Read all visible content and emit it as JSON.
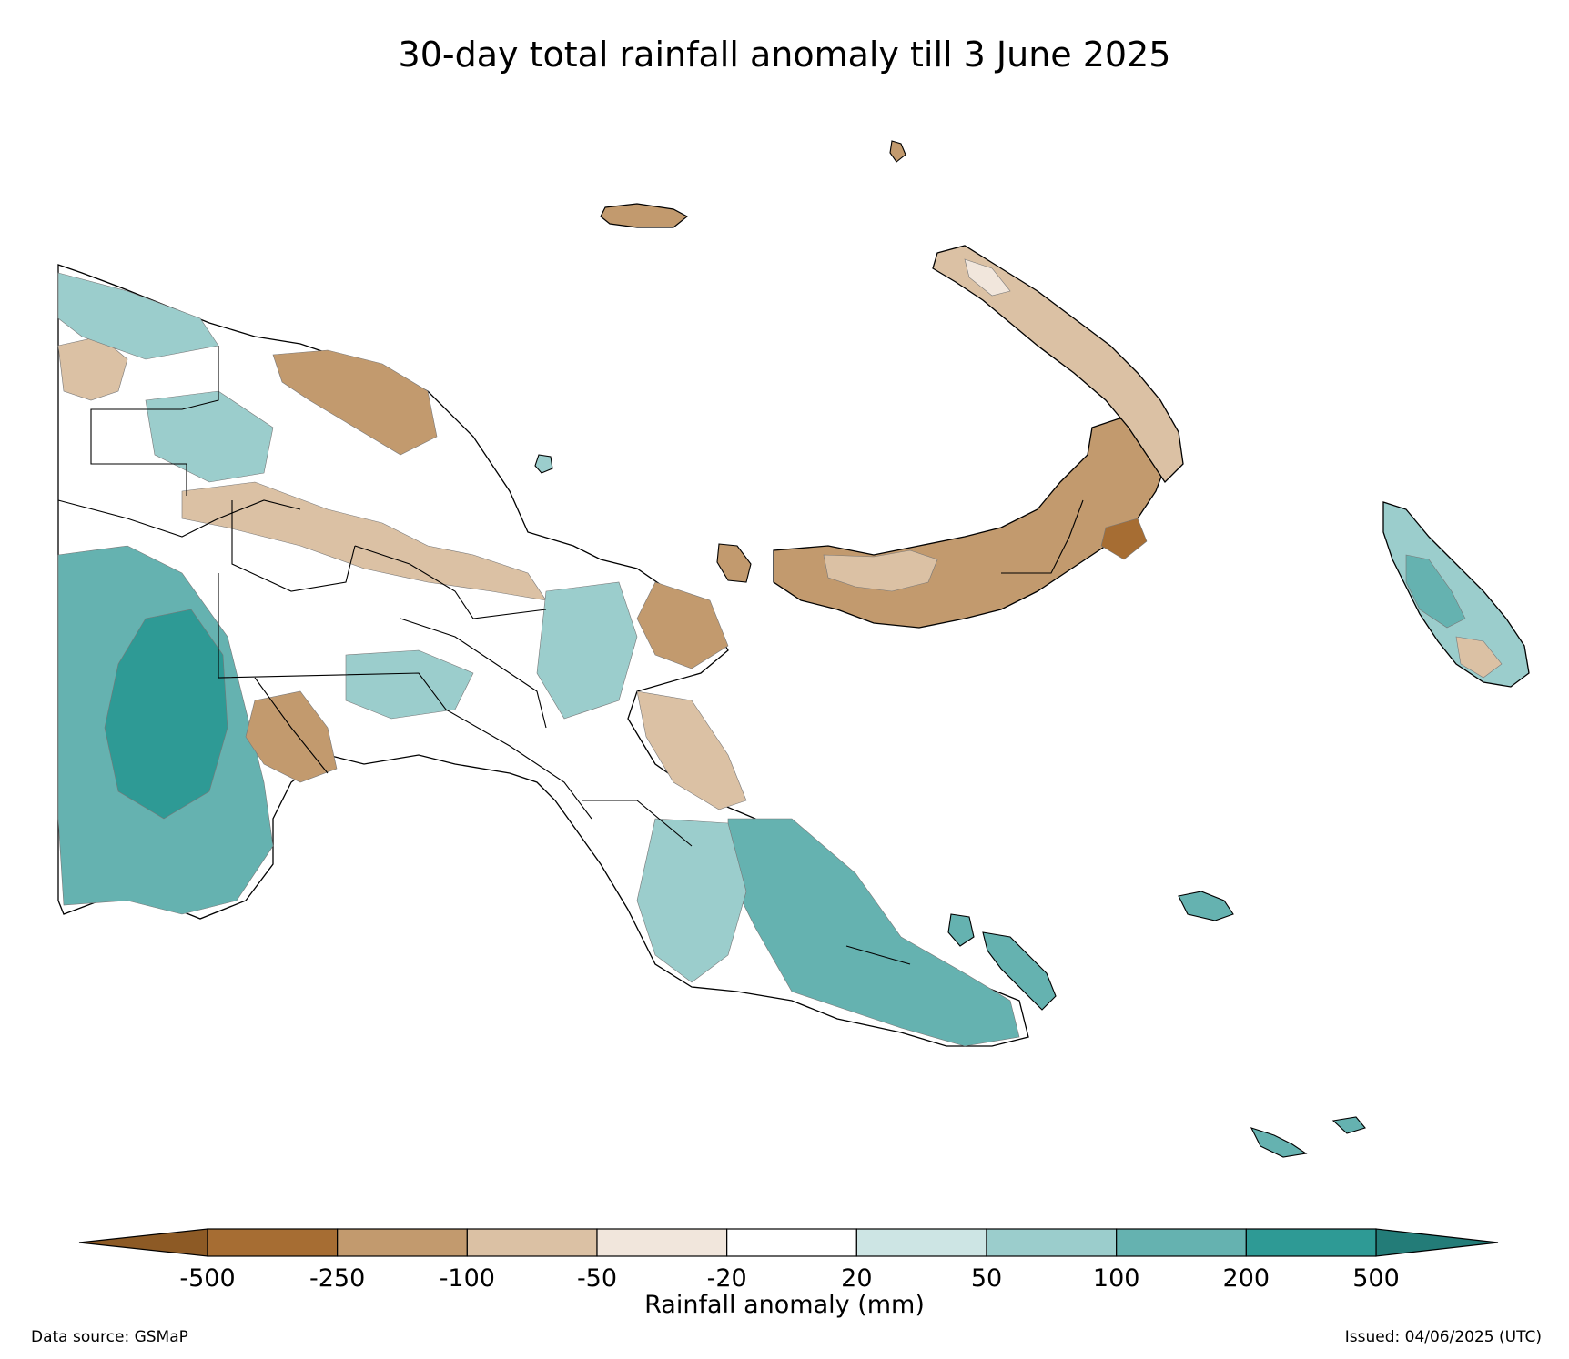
{
  "title": "30-day total rainfall anomaly till 3 June 2025",
  "colorbar": {
    "label": "Rainfall anomaly (mm)",
    "ticks": [
      "-500",
      "-250",
      "-100",
      "-50",
      "-20",
      "20",
      "50",
      "100",
      "200",
      "500"
    ],
    "bins": [
      {
        "range": "-500 to -250",
        "color": "#a66d33"
      },
      {
        "range": "-250 to -100",
        "color": "#c29a6e"
      },
      {
        "range": "-100 to -50",
        "color": "#dbc1a4"
      },
      {
        "range": "-50 to -20",
        "color": "#f1e6dc"
      },
      {
        "range": "-20 to 20",
        "color": "#ffffff"
      },
      {
        "range": "20 to 50",
        "color": "#cde5e4"
      },
      {
        "range": "50 to 100",
        "color": "#9bcdcc"
      },
      {
        "range": "100 to 200",
        "color": "#65b2b0"
      },
      {
        "range": "200 to 500",
        "color": "#2e9a95"
      }
    ],
    "extend_low_color": "#8d5a25",
    "extend_high_color": "#237c78"
  },
  "footer": {
    "source": "Data source: GSMaP",
    "issued": "Issued: 04/06/2025 (UTC)"
  }
}
